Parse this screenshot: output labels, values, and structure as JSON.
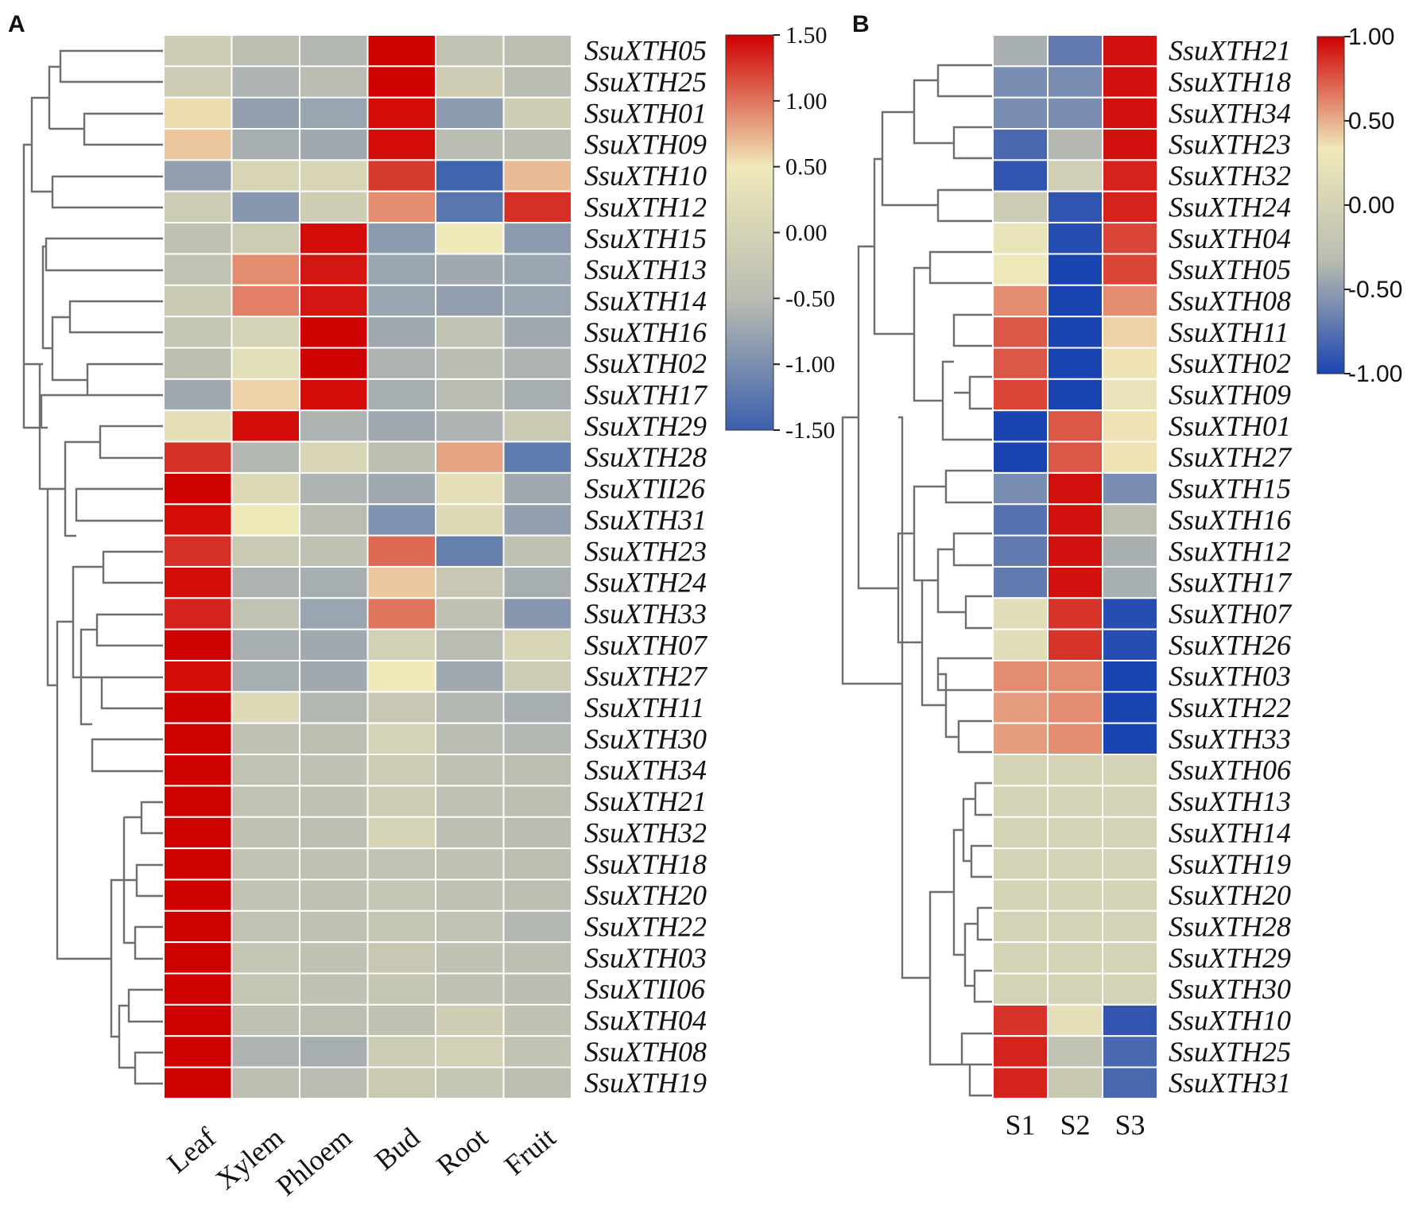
{
  "chart_data": [
    {
      "type": "heatmap",
      "panel": "A",
      "columns": [
        "Leaf",
        "Xylem",
        "Phloem",
        "Bud",
        "Root",
        "Fruit"
      ],
      "rows": [
        "SsuXTH05",
        "SsuXTH25",
        "SsuXTH01",
        "SsuXTH09",
        "SsuXTH10",
        "SsuXTH12",
        "SsuXTH15",
        "SsuXTH13",
        "SsuXTH14",
        "SsuXTH16",
        "SsuXTH02",
        "SsuXTH17",
        "SsuXTH29",
        "SsuXTH28",
        "SsuXTII26",
        "SsuXTH31",
        "SsuXTH23",
        "SsuXTH24",
        "SsuXTH33",
        "SsuXTH07",
        "SsuXTH27",
        "SsuXTH11",
        "SsuXTH30",
        "SsuXTH34",
        "SsuXTH21",
        "SsuXTH32",
        "SsuXTH18",
        "SsuXTH20",
        "SsuXTH22",
        "SsuXTH03",
        "SsuXTII06",
        "SsuXTH04",
        "SsuXTH08",
        "SsuXTH19"
      ],
      "values": [
        [
          -0.1,
          -0.45,
          -0.55,
          1.5,
          -0.35,
          -0.45
        ],
        [
          -0.15,
          -0.6,
          -0.5,
          1.5,
          -0.1,
          -0.5
        ],
        [
          0.55,
          -0.8,
          -0.75,
          1.45,
          -0.85,
          -0.1
        ],
        [
          0.65,
          -0.65,
          -0.7,
          1.45,
          -0.5,
          -0.5
        ],
        [
          -0.8,
          0.05,
          0.05,
          1.25,
          -1.45,
          0.7
        ],
        [
          -0.15,
          -0.9,
          -0.1,
          0.9,
          -1.25,
          1.3
        ],
        [
          -0.4,
          -0.15,
          1.45,
          -0.85,
          0.5,
          -0.85
        ],
        [
          -0.35,
          0.9,
          1.4,
          -0.75,
          -0.7,
          -0.75
        ],
        [
          -0.2,
          0.95,
          1.4,
          -0.75,
          -0.8,
          -0.75
        ],
        [
          -0.3,
          0.0,
          1.5,
          -0.7,
          -0.35,
          -0.7
        ],
        [
          -0.45,
          0.25,
          1.5,
          -0.6,
          -0.5,
          -0.6
        ],
        [
          -0.7,
          0.6,
          1.45,
          -0.65,
          -0.5,
          -0.65
        ],
        [
          0.3,
          1.45,
          -0.6,
          -0.7,
          -0.6,
          -0.2
        ],
        [
          1.3,
          -0.55,
          0.05,
          -0.45,
          0.8,
          -1.2
        ],
        [
          1.5,
          0.15,
          -0.6,
          -0.7,
          0.3,
          -0.7
        ],
        [
          1.45,
          0.5,
          -0.5,
          -0.95,
          0.15,
          -0.8
        ],
        [
          1.3,
          -0.2,
          -0.4,
          1.05,
          -1.15,
          -0.4
        ],
        [
          1.45,
          -0.6,
          -0.65,
          0.65,
          -0.25,
          -0.65
        ],
        [
          1.35,
          -0.35,
          -0.75,
          1.0,
          -0.4,
          -0.9
        ],
        [
          1.5,
          -0.65,
          -0.7,
          -0.05,
          -0.5,
          0.05
        ],
        [
          1.45,
          -0.65,
          -0.7,
          0.5,
          -0.7,
          -0.15
        ],
        [
          1.5,
          0.15,
          -0.55,
          -0.25,
          -0.55,
          -0.65
        ],
        [
          1.5,
          -0.4,
          -0.45,
          0.0,
          -0.5,
          -0.55
        ],
        [
          1.5,
          -0.35,
          -0.4,
          -0.15,
          -0.4,
          -0.45
        ],
        [
          1.5,
          -0.35,
          -0.4,
          -0.1,
          -0.4,
          -0.45
        ],
        [
          1.5,
          -0.4,
          -0.45,
          0.0,
          -0.45,
          -0.5
        ],
        [
          1.5,
          -0.35,
          -0.4,
          -0.35,
          -0.4,
          -0.45
        ],
        [
          1.5,
          -0.35,
          -0.4,
          -0.3,
          -0.4,
          -0.45
        ],
        [
          1.5,
          -0.35,
          -0.4,
          -0.3,
          -0.35,
          -0.55
        ],
        [
          1.5,
          -0.3,
          -0.4,
          -0.25,
          -0.4,
          -0.45
        ],
        [
          1.5,
          -0.3,
          -0.4,
          -0.3,
          -0.4,
          -0.5
        ],
        [
          1.5,
          -0.4,
          -0.45,
          -0.4,
          -0.1,
          -0.4
        ],
        [
          1.5,
          -0.6,
          -0.65,
          -0.15,
          -0.05,
          -0.35
        ],
        [
          1.5,
          -0.45,
          -0.5,
          -0.2,
          -0.3,
          -0.45
        ]
      ],
      "colorbar": {
        "min": -1.5,
        "max": 1.5,
        "ticks": [
          "1.50",
          "1.00",
          "0.50",
          "0.00",
          "-0.50",
          "-1.00",
          "-1.50"
        ],
        "tick_values": [
          1.5,
          1.0,
          0.5,
          0.0,
          -0.5,
          -1.0,
          -1.5
        ],
        "colors": [
          "#3a5fad",
          "#b9bcb1",
          "#f0e9ba",
          "#cf0000"
        ]
      },
      "dendrogram": "row clustering (left side)"
    },
    {
      "type": "heatmap",
      "panel": "B",
      "columns": [
        "S1",
        "S2",
        "S3"
      ],
      "rows": [
        "SsuXTH21",
        "SsuXTH18",
        "SsuXTH34",
        "SsuXTH23",
        "SsuXTH32",
        "SsuXTH24",
        "SsuXTH04",
        "SsuXTH05",
        "SsuXTH08",
        "SsuXTH11",
        "SsuXTH02",
        "SsuXTH09",
        "SsuXTH01",
        "SsuXTH27",
        "SsuXTH15",
        "SsuXTH16",
        "SsuXTH12",
        "SsuXTH17",
        "SsuXTH07",
        "SsuXTH26",
        "SsuXTH03",
        "SsuXTH22",
        "SsuXTH33",
        "SsuXTH06",
        "SsuXTH13",
        "SsuXTH14",
        "SsuXTH19",
        "SsuXTH20",
        "SsuXTH28",
        "SsuXTH29",
        "SsuXTH30",
        "SsuXTH10",
        "SsuXTH25",
        "SsuXTH31"
      ],
      "values": [
        [
          -0.4,
          -0.7,
          0.95
        ],
        [
          -0.6,
          -0.6,
          0.95
        ],
        [
          -0.6,
          -0.6,
          0.95
        ],
        [
          -0.8,
          -0.35,
          0.95
        ],
        [
          -0.9,
          -0.05,
          0.9
        ],
        [
          -0.1,
          -0.9,
          0.9
        ],
        [
          0.25,
          -0.95,
          0.8
        ],
        [
          0.3,
          -1.0,
          0.8
        ],
        [
          0.6,
          -1.0,
          0.6
        ],
        [
          0.75,
          -1.0,
          0.4
        ],
        [
          0.75,
          -1.0,
          0.35
        ],
        [
          0.8,
          -1.0,
          0.25
        ],
        [
          -1.0,
          0.75,
          0.35
        ],
        [
          -1.0,
          0.75,
          0.35
        ],
        [
          -0.6,
          0.95,
          -0.6
        ],
        [
          -0.75,
          0.95,
          -0.3
        ],
        [
          -0.7,
          0.95,
          -0.4
        ],
        [
          -0.7,
          0.95,
          -0.4
        ],
        [
          0.15,
          0.85,
          -0.95
        ],
        [
          0.15,
          0.85,
          -0.95
        ],
        [
          0.6,
          0.6,
          -1.0
        ],
        [
          0.55,
          0.6,
          -1.0
        ],
        [
          0.55,
          0.6,
          -1.0
        ],
        [
          0.0,
          0.0,
          0.0
        ],
        [
          0.0,
          0.0,
          0.0
        ],
        [
          0.0,
          0.0,
          0.0
        ],
        [
          0.0,
          0.0,
          0.0
        ],
        [
          0.0,
          0.0,
          0.0
        ],
        [
          0.0,
          0.0,
          0.0
        ],
        [
          0.0,
          0.0,
          0.0
        ],
        [
          0.0,
          0.0,
          0.0
        ],
        [
          0.85,
          0.2,
          -0.9
        ],
        [
          0.9,
          -0.25,
          -0.8
        ],
        [
          0.9,
          -0.15,
          -0.8
        ]
      ],
      "colorbar": {
        "min": -1.0,
        "max": 1.0,
        "ticks": [
          "1.00",
          "0.50",
          "0.00",
          "-0.50",
          "-1.00"
        ],
        "tick_values": [
          1.0,
          0.5,
          0.0,
          -0.5,
          -1.0
        ],
        "colors": [
          "#1a44b0",
          "#b9bcb1",
          "#f0e9ba",
          "#cf0000"
        ]
      },
      "dendrogram": "row clustering (left side)"
    }
  ]
}
